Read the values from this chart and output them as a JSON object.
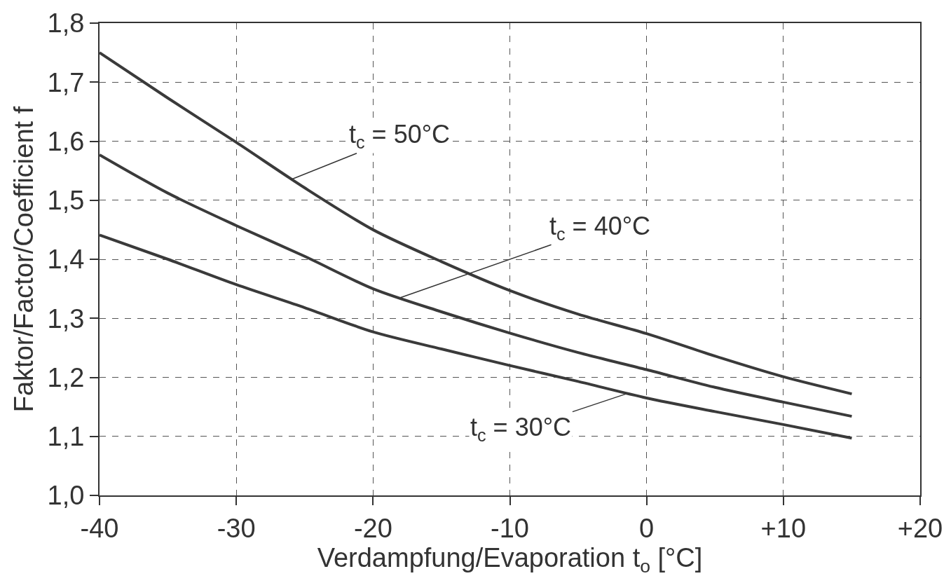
{
  "chart_data": {
    "type": "line",
    "xlabel": "Verdampfung/Evaporation t$_{o}$ [°C]",
    "ylabel": "Faktor/Factor/Coefficient f",
    "x": [
      -40,
      -35,
      -30,
      -25,
      -20,
      -15,
      -10,
      -5,
      0,
      5,
      10,
      15
    ],
    "series": [
      {
        "color": "#3a3a3a",
        "values": [
          1.75,
          1.673,
          1.598,
          1.521,
          1.45,
          1.396,
          1.347,
          1.307,
          1.274,
          1.236,
          1.201,
          1.172
        ]
      },
      {
        "color": "#3a3a3a",
        "values": [
          1.577,
          1.512,
          1.457,
          1.405,
          1.35,
          1.311,
          1.275,
          1.242,
          1.213,
          1.183,
          1.158,
          1.134
        ]
      },
      {
        "color": "#3a3a3a",
        "values": [
          1.441,
          1.4,
          1.357,
          1.318,
          1.277,
          1.248,
          1.22,
          1.193,
          1.165,
          1.142,
          1.12,
          1.097
        ]
      }
    ],
    "xlim": [
      -40,
      20
    ],
    "xticks": [
      -40,
      -30,
      -20,
      -10,
      0,
      {
        "value": 10,
        "label": "+10"
      },
      {
        "value": 20,
        "label": "+20"
      }
    ],
    "ylim": [
      1.0,
      1.8
    ],
    "yticks": [
      {
        "value": 1.0,
        "label": "1,0"
      },
      {
        "value": 1.1,
        "label": "1,1"
      },
      {
        "value": 1.2,
        "label": "1,2"
      },
      {
        "value": 1.3,
        "label": "1,3"
      },
      {
        "value": 1.4,
        "label": "1,4"
      },
      {
        "value": 1.5,
        "label": "1,5"
      },
      {
        "value": 1.6,
        "label": "1,6"
      },
      {
        "value": 1.7,
        "label": "1,7"
      },
      {
        "value": 1.8,
        "label": "1,8"
      }
    ],
    "grid": true,
    "line_style": "solid",
    "annotations": [
      {
        "text": "t$_{c}$ = 50°C",
        "x": -26,
        "y": 1.535
      },
      {
        "text": "t$_{c}$ = 40°C",
        "x": -18,
        "y": 1.335
      },
      {
        "text": "t$_{c}$ = 30°C",
        "x": -1.5,
        "y": 1.172
      }
    ]
  }
}
